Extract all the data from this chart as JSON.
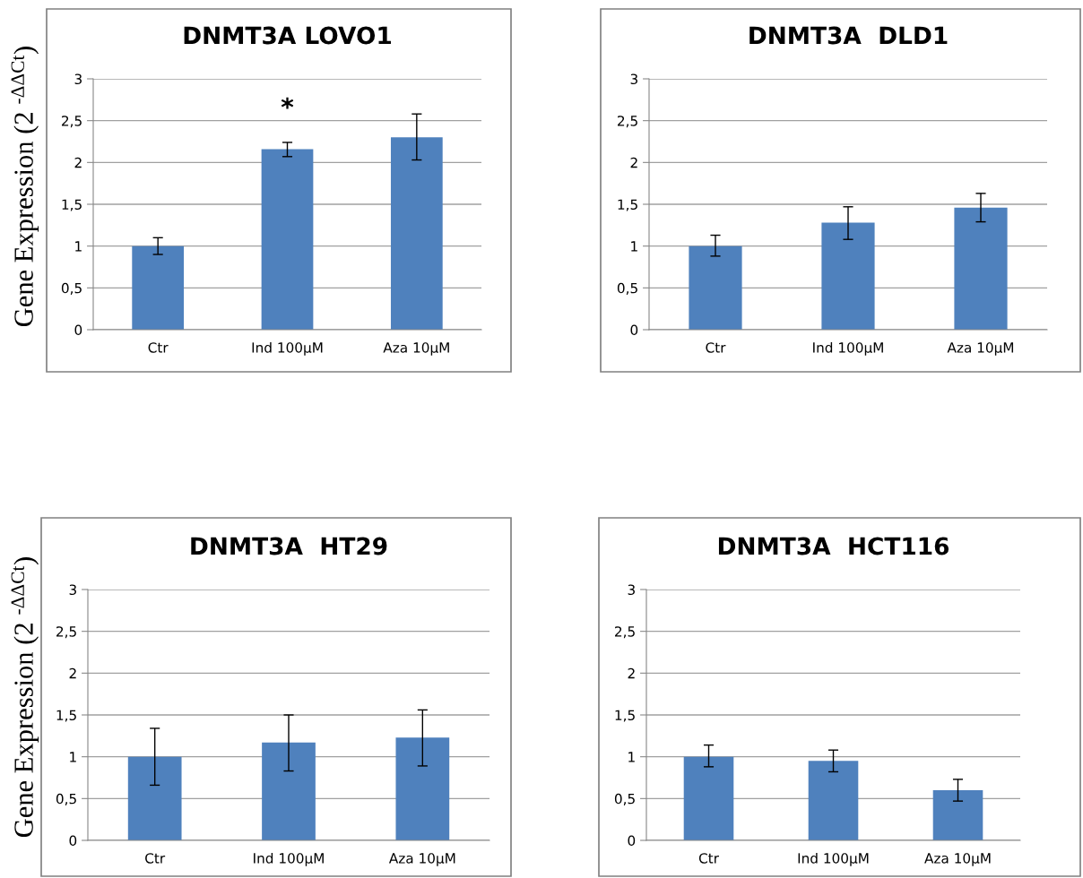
{
  "chart_data": [
    {
      "type": "bar",
      "title": "DNMT3A LOVO1",
      "ylabel": "Gene Expression (2 $^{-ΔΔCt}$)",
      "categories": [
        "Ctr",
        "Ind 100µM",
        "Aza 10µM"
      ],
      "values": [
        1.0,
        2.16,
        2.3
      ],
      "errors": [
        [
          0.9,
          1.1
        ],
        [
          2.07,
          2.24
        ],
        [
          2.03,
          2.58
        ]
      ],
      "color": "#4f81bd",
      "ylim": [
        0,
        3
      ],
      "yticks": [
        0,
        {
          "value": 0.5,
          "label": "0,5"
        },
        1,
        {
          "value": 1.5,
          "label": "1,5"
        },
        2,
        {
          "value": 2.5,
          "label": "2,5"
        },
        3
      ],
      "grid": "y",
      "annotations": [
        "*"
      ]
    },
    {
      "type": "bar",
      "title": "DNMT3A  DLD1",
      "categories": [
        "Ctr",
        "Ind 100µM",
        "Aza 10µM"
      ],
      "values": [
        1.0,
        1.28,
        1.46
      ],
      "errors": [
        [
          0.88,
          1.13
        ],
        [
          1.08,
          1.47
        ],
        [
          1.29,
          1.63
        ]
      ],
      "color": "#4f81bd",
      "ylim": [
        0,
        3
      ],
      "yticks": [
        0,
        {
          "value": 0.5,
          "label": "0,5"
        },
        1,
        {
          "value": 1.5,
          "label": "1,5"
        },
        2,
        {
          "value": 2.5,
          "label": "2,5"
        },
        3
      ],
      "grid": "y"
    },
    {
      "type": "bar",
      "title": "DNMT3A  HT29",
      "ylabel": "Gene Expression (2 $^{-ΔΔCt}$)",
      "categories": [
        "Ctr",
        "Ind 100µM",
        "Aza 10µM"
      ],
      "values": [
        1.0,
        1.17,
        1.23
      ],
      "errors": [
        [
          0.66,
          1.34
        ],
        [
          0.83,
          1.5
        ],
        [
          0.89,
          1.56
        ]
      ],
      "color": "#4f81bd",
      "ylim": [
        0,
        3
      ],
      "yticks": [
        0,
        {
          "value": 0.5,
          "label": "0,5"
        },
        1,
        {
          "value": 1.5,
          "label": "1,5"
        },
        2,
        {
          "value": 2.5,
          "label": "2,5"
        },
        3
      ],
      "grid": "y"
    },
    {
      "type": "bar",
      "title": "DNMT3A  HCT116",
      "categories": [
        "Ctr",
        "Ind 100µM",
        "Aza 10µM"
      ],
      "values": [
        1.0,
        0.95,
        0.6
      ],
      "errors": [
        [
          0.88,
          1.14
        ],
        [
          0.82,
          1.08
        ],
        [
          0.47,
          0.73
        ]
      ],
      "color": "#4f81bd",
      "ylim": [
        0,
        3
      ],
      "yticks": [
        0,
        {
          "value": 0.5,
          "label": "0,5"
        },
        1,
        {
          "value": 1.5,
          "label": "1,5"
        },
        2,
        {
          "value": 2.5,
          "label": "2,5"
        },
        3
      ],
      "grid": "y"
    }
  ]
}
